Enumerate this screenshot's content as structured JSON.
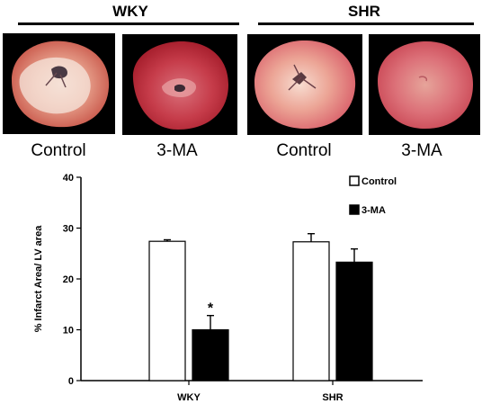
{
  "groups": [
    {
      "title": "WKY",
      "panels": [
        {
          "label": "Control",
          "tissue": "pale-red-heart-slice-with-white-infarct"
        },
        {
          "label": "3-MA",
          "tissue": "red-heart-slice"
        }
      ]
    },
    {
      "title": "SHR",
      "panels": [
        {
          "label": "Control",
          "tissue": "pale-red-heart-slice"
        },
        {
          "label": "3-MA",
          "tissue": "red-heart-slice"
        }
      ]
    }
  ],
  "colors": {
    "control_bar": "#ffffff",
    "treatment_bar": "#000000",
    "axis": "#000000"
  },
  "chart_data": {
    "type": "bar",
    "categories": [
      "WKY",
      "SHR"
    ],
    "series": [
      {
        "name": "Control",
        "values": [
          27.4,
          27.3
        ],
        "errors": [
          0.3,
          1.6
        ]
      },
      {
        "name": "3-MA",
        "values": [
          10.0,
          23.3
        ],
        "errors": [
          2.8,
          2.6
        ]
      }
    ],
    "ylabel": "% Infarct Area/ LV area",
    "xlabel": "",
    "ylim": [
      0,
      40
    ],
    "yticks": [
      0,
      10,
      20,
      30,
      40
    ],
    "annotations": [
      {
        "category": "WKY",
        "series": "3-MA",
        "text": "*"
      }
    ],
    "legend": {
      "placement": "top-right"
    },
    "grid": false
  }
}
